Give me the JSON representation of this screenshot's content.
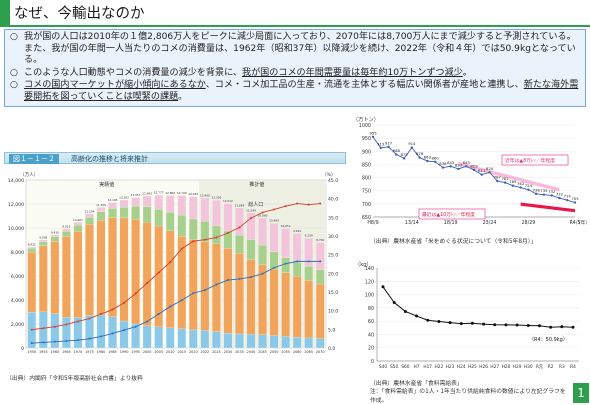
{
  "title": "なぜ、今輸出なのか",
  "bullets": [
    {
      "marker": "○",
      "text": "我が国の人口は2010年の１億2,806万人をピークに減少局面に入っており、2070年には8,700万人にまで減少すると予測されている。また、我が国の年間一人当たりのコメの消費量は、1962年（昭和37年）以降減少を続け、2022年（令和４年）では50.9kgとなっている。",
      "emph": ""
    },
    {
      "marker": "○",
      "text": "このような人口動態やコメの消費量の減少を背景に、",
      "emph": "我が国のコメの年間需要量は毎年約10万トンずつ減少",
      "tail": "。"
    },
    {
      "marker": "○",
      "text": "コメの国内マーケットが縮小傾向にあるなか",
      "mid": "、コメ・コメ加工品の生産・流通を主体とする幅広い関係者が産地と連携し、",
      "emph": "新たな海外需要開拓を図っていくことは喫緊の課題",
      "tail": "。"
    }
  ],
  "left_figure": {
    "number": "図１－１－２",
    "name": "高齢化の推移と将来推計",
    "source": "（出典）内閣府「令和5年版高齢社会白書」より抜粋",
    "left_axis_unit": "（万人）",
    "right_axis_unit": "（%）",
    "legend_actual": "実績値",
    "legend_forecast": "推計値",
    "total_label": "総人口",
    "chart_data": {
      "type": "bar",
      "title": "高齢化の推移と将来推計",
      "ylabel": "（万人）",
      "y2label": "（%）",
      "ylim": [
        0,
        14000
      ],
      "y2lim": [
        0,
        45
      ],
      "categories": [
        "1950",
        "1955",
        "1960",
        "1965",
        "1970",
        "1975",
        "1980",
        "1985",
        "1990",
        "1995",
        "2000",
        "2005",
        "2010",
        "2015",
        "2020",
        "2022",
        "2025",
        "2030",
        "2035",
        "2040",
        "2045",
        "2050",
        "2055",
        "2060",
        "2065",
        "2070"
      ],
      "series": [
        {
          "name": "0~14歳",
          "values": [
            2979,
            3012,
            2843,
            2553,
            2515,
            2723,
            2751,
            2603,
            2249,
            2001,
            1847,
            1759,
            1680,
            1595,
            1503,
            1450,
            1363,
            1240,
            1169,
            1142,
            1103,
            1041,
            966,
            893,
            836,
            797
          ]
        },
        {
          "name": "15~64歳",
          "values": [
            5017,
            5517,
            6047,
            6744,
            7212,
            7581,
            7883,
            8251,
            8590,
            8716,
            8622,
            8409,
            8103,
            7728,
            7509,
            7421,
            7310,
            7076,
            6722,
            6213,
            5832,
            5540,
            5307,
            5078,
            4809,
            4535
          ]
        },
        {
          "name": "65~74歳",
          "values": [
            309,
            338,
            375,
            435,
            516,
            599,
            719,
            796,
            893,
            1109,
            1301,
            1407,
            1517,
            1755,
            1742,
            1687,
            1497,
            1435,
            1519,
            1681,
            1643,
            1424,
            1258,
            1191,
            1169,
            1174
          ]
        },
        {
          "name": "75歳以上",
          "values": [
            106,
            138,
            163,
            189,
            225,
            284,
            366,
            471,
            597,
            717,
            900,
            1164,
            1407,
            1632,
            1860,
            1937,
            2155,
            2288,
            2260,
            2227,
            2257,
            2391,
            2428,
            2382,
            2334,
            2287
          ]
        }
      ],
      "lines": [
        {
          "name": "高齢化率",
          "values": [
            4.9,
            5.3,
            5.7,
            6.3,
            7.1,
            7.9,
            9.1,
            10.3,
            12.1,
            14.6,
            17.4,
            20.2,
            23.0,
            26.6,
            28.6,
            29.0,
            29.6,
            30.8,
            32.3,
            34.8,
            36.3,
            37.1,
            38.0,
            38.7,
            38.4,
            38.7
          ]
        },
        {
          "name": "75歳以上割合",
          "values": [
            1.3,
            1.5,
            1.7,
            1.9,
            2.1,
            2.5,
            3.1,
            3.9,
            4.8,
            5.7,
            7.1,
            9.1,
            11.1,
            12.8,
            14.7,
            15.5,
            17.0,
            18.2,
            18.5,
            19.0,
            19.9,
            21.5,
            22.6,
            23.2,
            23.2,
            23.2
          ]
        }
      ],
      "totals": [
        8411,
        9008,
        9430,
        9921,
        10467,
        11194,
        11706,
        12105,
        12361,
        12557,
        12693,
        12777,
        12806,
        12709,
        12615,
        12495,
        12326,
        12012,
        11664,
        11284,
        10880,
        10469,
        10051,
        9615,
        9159,
        8700
      ]
    }
  },
  "rice_demand": {
    "unit": "（万トン）",
    "note_upper": "近年は▲8万ﾄﾝ／年程度",
    "note_lower": "最近は▲10万ﾄﾝ／年程度",
    "x_unit": "（年）",
    "source": "（出典）農林水産省「米をめぐる状況について（令和5年8月）」",
    "chart_data": {
      "type": "line",
      "ylim": [
        650,
        1000
      ],
      "y_ticks": [
        650,
        700,
        750,
        800,
        850,
        900,
        950,
        1000
      ],
      "x_ticks": [
        "H8/9",
        "13/14",
        "18/19",
        "23/24",
        "28/29",
        "R4/5"
      ],
      "x_tick_index": [
        0,
        5,
        10,
        15,
        20,
        26
      ],
      "values": [
        955,
        913,
        917,
        888,
        873,
        914,
        876,
        863,
        860,
        838,
        843,
        833,
        843,
        829,
        811,
        820,
        787,
        781,
        769,
        762,
        754,
        738,
        735,
        732,
        722,
        714,
        705
      ],
      "labels": [
        "955",
        "913",
        "917",
        "888",
        "873",
        "914",
        "876",
        "863",
        "860",
        "838",
        "843",
        "833",
        "843",
        "829",
        "811",
        "820",
        "787",
        "781",
        "769",
        "762",
        "754",
        "738",
        "735",
        "732",
        "722",
        "714",
        "705"
      ]
    }
  },
  "rice_consumption": {
    "unit": "（kg）",
    "note": "（R4：50.9kg）",
    "source_line1": "（出典）農林水産省「食料需給表」",
    "source_line2": "注：「食料需給表」の1人・1年当たり供給純食料の数値により左記グラフを作成。",
    "chart_data": {
      "type": "line",
      "ylim": [
        0,
        140
      ],
      "y_ticks": [
        0,
        20,
        40,
        60,
        80,
        100,
        120,
        140
      ],
      "categories": [
        "S40",
        "S50",
        "S60",
        "H7",
        "H17",
        "H22",
        "H23",
        "H24",
        "H25",
        "H26",
        "H27",
        "H28",
        "H29",
        "H30",
        "R元",
        "R2",
        "R3",
        "R4"
      ],
      "values": [
        111.7,
        88.0,
        74.6,
        67.8,
        61.4,
        59.5,
        57.8,
        56.2,
        56.8,
        55.5,
        54.6,
        54.4,
        54.1,
        53.5,
        53.0,
        50.8,
        51.5,
        50.9
      ]
    }
  },
  "page_number": "1"
}
